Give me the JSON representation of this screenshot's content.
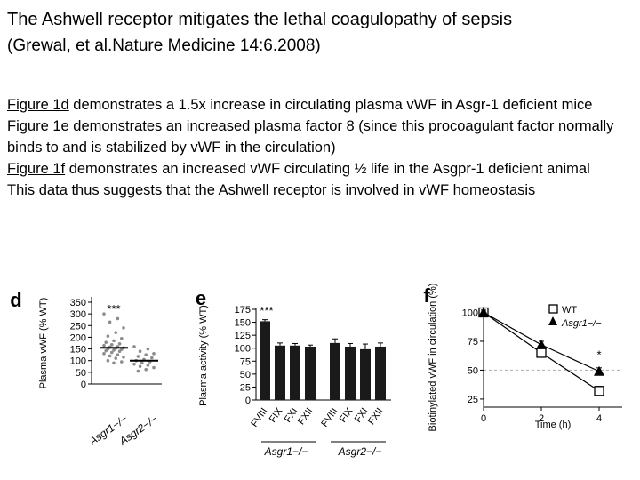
{
  "title": "The Ashwell receptor mitigates the lethal coagulopathy of sepsis",
  "citation": "(Grewal, et al.Nature Medicine 14:6.2008)",
  "paragraphs": [
    {
      "link": "Figure 1d",
      "text": " demonstrates a 1.5x increase in circulating plasma vWF in Asgr-1 deficient mice"
    },
    {
      "link": "Figure 1e",
      "text": " demonstrates an increased plasma factor 8 (since this procoagulant factor normally binds to and is stabilized by vWF in the circulation)"
    },
    {
      "link": "Figure 1f",
      "text": " demonstrates an increased vWF circulating ½ life in the Asgpr-1 deficient animal"
    },
    {
      "link": "",
      "text": "This data thus suggests that the Ashwell receptor is involved in vWF homeostasis"
    }
  ],
  "chart_data": [
    {
      "panel": "d",
      "type": "scatter",
      "ylabel": "Plasma vWF (% WT)",
      "yticks": [
        0,
        50,
        100,
        150,
        200,
        250,
        300,
        350
      ],
      "ylim": [
        0,
        350
      ],
      "categories": [
        "Asgr1−/−",
        "Asgr2−/−"
      ],
      "series": [
        {
          "category": "Asgr1−/−",
          "mean": 155,
          "points": [
            300,
            280,
            265,
            240,
            220,
            205,
            195,
            185,
            178,
            172,
            168,
            165,
            160,
            158,
            155,
            152,
            150,
            148,
            145,
            142,
            140,
            135,
            130,
            125,
            120,
            115,
            110,
            100,
            95,
            90
          ]
        },
        {
          "category": "Asgr2−/−",
          "mean": 100,
          "points": [
            160,
            150,
            140,
            130,
            125,
            118,
            112,
            105,
            100,
            95,
            90,
            85,
            80,
            75,
            70,
            62,
            55
          ]
        }
      ],
      "annotation": "***"
    },
    {
      "panel": "e",
      "type": "bar",
      "ylabel": "Plasma activity (% WT)",
      "yticks": [
        0,
        25,
        50,
        75,
        100,
        125,
        150,
        175
      ],
      "ylim": [
        0,
        175
      ],
      "categories": [
        "FVIII",
        "FIX",
        "FXI",
        "FXII",
        "FVIII",
        "FIX",
        "FXI",
        "FXII"
      ],
      "groups": [
        "Asgr1−/−",
        "Asgr2−/−"
      ],
      "values": [
        152,
        105,
        105,
        103,
        110,
        103,
        98,
        103
      ],
      "errors": [
        3,
        5,
        4,
        3,
        8,
        6,
        10,
        7
      ],
      "annotation": "***"
    },
    {
      "panel": "f",
      "type": "line",
      "xlabel": "Time (h)",
      "ylabel": "Biotinylated vWF in circulation (%)",
      "xticks": [
        0,
        2,
        4
      ],
      "yticks": [
        25,
        50,
        75,
        100
      ],
      "xlim": [
        0,
        4.8
      ],
      "ylim": [
        18,
        105
      ],
      "reference_line": 50,
      "series": [
        {
          "name": "WT",
          "x": [
            0,
            2,
            4
          ],
          "y": [
            100,
            65,
            32
          ],
          "errors": [
            2,
            4,
            4
          ],
          "marker": "open-square"
        },
        {
          "name": "Asgr1−/−",
          "x": [
            0,
            2,
            4
          ],
          "y": [
            100,
            72,
            49
          ],
          "errors": [
            2,
            3,
            3
          ],
          "marker": "filled-triangle"
        }
      ],
      "annotation": "*",
      "legend_position": "top-right"
    }
  ],
  "colors": {
    "ink": "#000000",
    "bar": "#1a1a1a",
    "dot": "#8c8c8c",
    "grid": "#aaaaaa"
  }
}
